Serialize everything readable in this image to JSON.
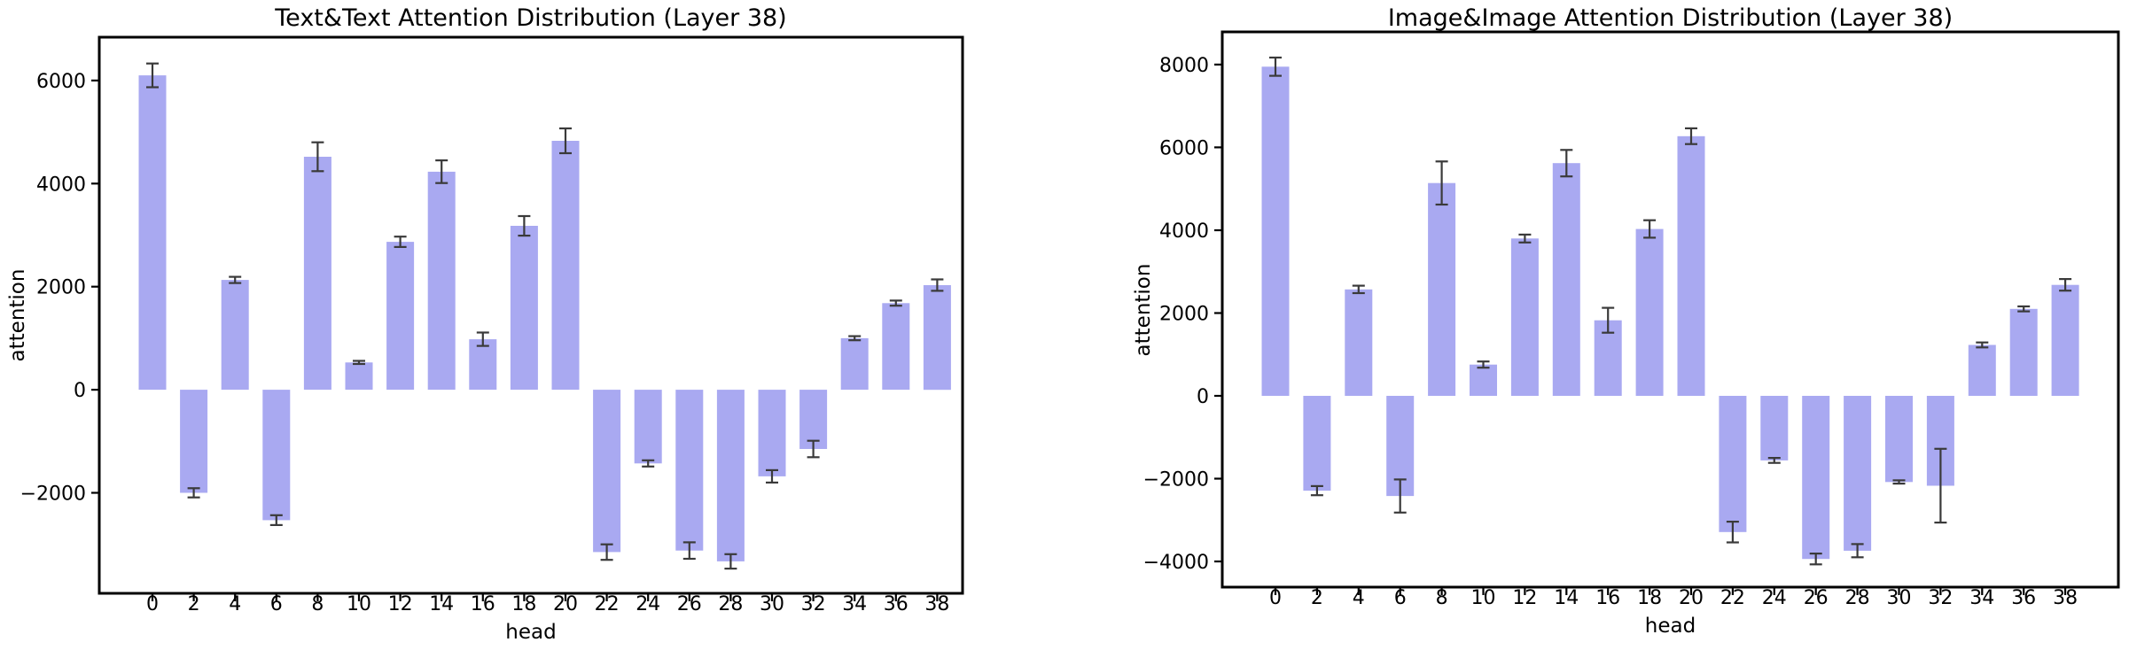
{
  "chart_data": [
    {
      "type": "bar",
      "title": "Text&Text Attention Distribution (Layer 38)",
      "xlabel": "head",
      "ylabel": "attention",
      "categories": [
        "0",
        "2",
        "4",
        "6",
        "8",
        "10",
        "12",
        "14",
        "16",
        "18",
        "20",
        "22",
        "24",
        "26",
        "28",
        "30",
        "32",
        "34",
        "36",
        "38"
      ],
      "values": [
        6100,
        -2000,
        2130,
        -2530,
        4520,
        530,
        2870,
        4230,
        980,
        3180,
        4830,
        -3150,
        -1430,
        -3120,
        -3330,
        -1680,
        -1150,
        1000,
        1680,
        2030
      ],
      "errors": [
        230,
        90,
        60,
        95,
        280,
        30,
        100,
        220,
        130,
        190,
        240,
        150,
        60,
        160,
        140,
        120,
        160,
        40,
        50,
        110
      ],
      "yticks": [
        -2000,
        0,
        2000,
        4000,
        6000
      ],
      "ylim": [
        -3950,
        6840
      ],
      "grid": false,
      "legend": "none",
      "bar_color": "#a9a9f1",
      "error_color": "#3a3a3a",
      "spine_color": "#000000"
    },
    {
      "type": "bar",
      "title": "Image&Image Attention Distribution (Layer 38)",
      "xlabel": "head",
      "ylabel": "attention",
      "categories": [
        "0",
        "2",
        "4",
        "6",
        "8",
        "10",
        "12",
        "14",
        "16",
        "18",
        "20",
        "22",
        "24",
        "26",
        "28",
        "30",
        "32",
        "34",
        "36",
        "38"
      ],
      "values": [
        7950,
        -2290,
        2570,
        -2420,
        5140,
        755,
        3800,
        5620,
        1825,
        4030,
        6270,
        -3290,
        -1560,
        -3940,
        -3740,
        -2080,
        -2170,
        1230,
        2100,
        2680
      ],
      "errors": [
        220,
        110,
        90,
        400,
        520,
        75,
        95,
        320,
        300,
        210,
        190,
        250,
        60,
        130,
        160,
        40,
        890,
        60,
        60,
        140
      ],
      "yticks": [
        -4000,
        -2000,
        0,
        2000,
        4000,
        6000,
        8000
      ],
      "ylim": [
        -4620,
        8790
      ],
      "grid": false,
      "legend": "none",
      "bar_color": "#a9a9f1",
      "error_color": "#3a3a3a",
      "spine_color": "#000000"
    }
  ]
}
